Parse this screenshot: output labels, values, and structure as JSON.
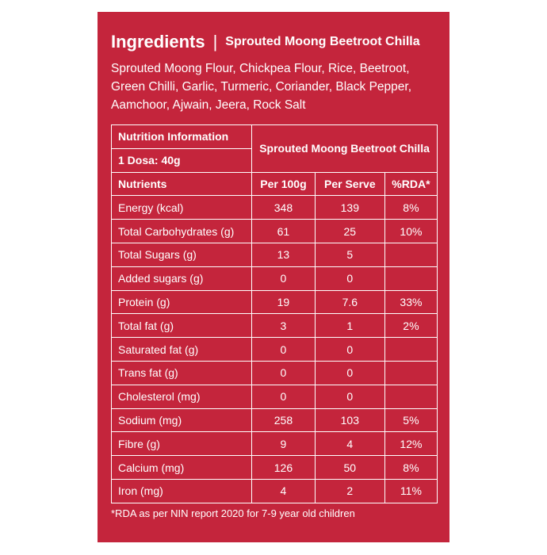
{
  "header": {
    "title": "Ingredients",
    "separator": "|",
    "product": "Sprouted Moong Beetroot Chilla"
  },
  "ingredients": [
    "Sprouted Moong Flour, Chickpea Flour, Rice, Beetroot,",
    "Green Chilli, Garlic, Turmeric, Coriander, Black Pepper,",
    "Aamchoor, Ajwain, Jeera, Rock Salt"
  ],
  "table": {
    "title": "Nutrition Information",
    "product": "Sprouted Moong Beetroot Chilla",
    "serving": "1 Dosa: 40g",
    "columns": [
      "Nutrients",
      "Per 100g",
      "Per Serve",
      "%RDA*"
    ],
    "rows": [
      [
        "Energy (kcal)",
        "348",
        "139",
        "8%"
      ],
      [
        "Total Carbohydrates (g)",
        "61",
        "25",
        "10%"
      ],
      [
        "Total Sugars (g)",
        "13",
        "5",
        null
      ],
      [
        "Added sugars (g)",
        "0",
        "0",
        null
      ],
      [
        "Protein (g)",
        "19",
        "7.6",
        "33%"
      ],
      [
        "Total fat (g)",
        "3",
        "1",
        "2%"
      ],
      [
        "Saturated fat (g)",
        "0",
        "0",
        null
      ],
      [
        "Trans fat (g)",
        "0",
        "0",
        null
      ],
      [
        "Cholesterol (mg)",
        "0",
        "0",
        null
      ],
      [
        "Sodium (mg)",
        "258",
        "103",
        "5%"
      ],
      [
        "Fibre (g)",
        "9",
        "4",
        "12%"
      ],
      [
        "Calcium (mg)",
        "126",
        "50",
        "8%"
      ],
      [
        "Iron (mg)",
        "4",
        "2",
        "11%"
      ]
    ]
  },
  "footnote": "*RDA as per NIN report 2020 for 7-9 year old children"
}
